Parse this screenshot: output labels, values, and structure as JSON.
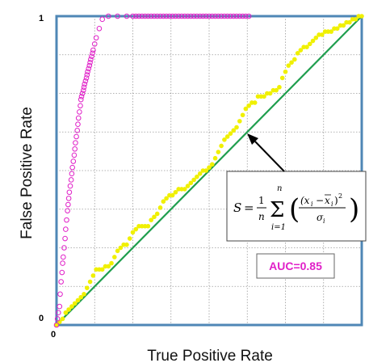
{
  "chart_data": {
    "type": "scatter",
    "xlabel": "True Positive Rate",
    "ylabel": "False Positive Rate",
    "xlim": [
      0,
      1
    ],
    "ylim": [
      0,
      1
    ],
    "grid": true,
    "ticks": {
      "x_origin": "0",
      "y_origin": "0",
      "y_top": "1"
    },
    "colors": {
      "frame": "#4f87b6",
      "grid": "#9a9a9a",
      "diagonal": "#1f9e4e",
      "yellow": "#f0f000",
      "magenta": "#e020c8"
    },
    "annotations": {
      "auc": "AUC=0.85",
      "formula": "S = 1/n Σ_{i=1}^{n} ((x_i − x̄_i)^2 / σ_i)",
      "arrow_target": [
        0.515,
        0.515
      ]
    },
    "series": [
      {
        "marker": "filled-circle",
        "color": "#f0f000",
        "x": [
          0.0,
          0.01,
          0.02,
          0.03,
          0.04,
          0.05,
          0.06,
          0.07,
          0.08,
          0.09,
          0.1,
          0.11,
          0.12,
          0.13,
          0.14,
          0.15,
          0.16,
          0.17,
          0.18,
          0.19,
          0.2,
          0.21,
          0.22,
          0.23,
          0.24,
          0.25,
          0.26,
          0.27,
          0.28,
          0.29,
          0.3,
          0.31,
          0.32,
          0.33,
          0.34,
          0.35,
          0.36,
          0.37,
          0.38,
          0.39,
          0.4,
          0.41,
          0.42,
          0.43,
          0.44,
          0.45,
          0.46,
          0.47,
          0.48,
          0.49,
          0.5,
          0.51,
          0.52,
          0.53,
          0.54,
          0.55,
          0.56,
          0.57,
          0.58,
          0.59,
          0.6,
          0.61,
          0.62,
          0.63,
          0.64,
          0.65,
          0.66,
          0.67,
          0.68,
          0.69,
          0.7,
          0.71,
          0.72,
          0.73,
          0.74,
          0.75,
          0.76,
          0.77,
          0.78,
          0.79,
          0.8,
          0.81,
          0.82,
          0.83,
          0.84,
          0.85,
          0.86,
          0.87,
          0.88,
          0.89,
          0.9,
          0.91,
          0.92,
          0.93,
          0.94,
          0.95,
          0.96,
          0.97,
          0.98,
          0.99,
          1.0
        ],
        "y": [
          0.0,
          0.01,
          0.02,
          0.04,
          0.05,
          0.06,
          0.07,
          0.08,
          0.09,
          0.1,
          0.12,
          0.14,
          0.16,
          0.18,
          0.18,
          0.18,
          0.19,
          0.19,
          0.2,
          0.22,
          0.24,
          0.25,
          0.26,
          0.26,
          0.28,
          0.3,
          0.31,
          0.32,
          0.32,
          0.32,
          0.32,
          0.34,
          0.35,
          0.36,
          0.38,
          0.4,
          0.41,
          0.42,
          0.42,
          0.43,
          0.44,
          0.44,
          0.44,
          0.45,
          0.46,
          0.47,
          0.48,
          0.49,
          0.5,
          0.5,
          0.51,
          0.52,
          0.54,
          0.56,
          0.58,
          0.6,
          0.61,
          0.62,
          0.63,
          0.64,
          0.66,
          0.68,
          0.7,
          0.71,
          0.72,
          0.72,
          0.74,
          0.74,
          0.74,
          0.75,
          0.75,
          0.76,
          0.76,
          0.77,
          0.8,
          0.82,
          0.84,
          0.85,
          0.86,
          0.88,
          0.89,
          0.9,
          0.9,
          0.91,
          0.92,
          0.93,
          0.94,
          0.94,
          0.95,
          0.95,
          0.95,
          0.96,
          0.96,
          0.97,
          0.97,
          0.98,
          0.98,
          0.99,
          0.99,
          1.0,
          1.0
        ]
      },
      {
        "marker": "open-circle",
        "color": "#e020c8",
        "x": [
          0.0,
          0.003,
          0.006,
          0.01,
          0.012,
          0.015,
          0.018,
          0.02,
          0.022,
          0.025,
          0.028,
          0.03,
          0.033,
          0.036,
          0.038,
          0.04,
          0.042,
          0.045,
          0.048,
          0.05,
          0.052,
          0.055,
          0.058,
          0.06,
          0.062,
          0.065,
          0.068,
          0.07,
          0.072,
          0.075,
          0.078,
          0.08,
          0.082,
          0.085,
          0.088,
          0.09,
          0.092,
          0.095,
          0.098,
          0.1,
          0.102,
          0.105,
          0.108,
          0.11,
          0.112,
          0.115,
          0.118,
          0.12,
          0.125,
          0.13,
          0.14,
          0.15,
          0.17,
          0.2,
          0.23,
          0.25,
          0.26,
          0.27,
          0.28,
          0.29,
          0.3,
          0.31,
          0.32,
          0.33,
          0.34,
          0.35,
          0.36,
          0.37,
          0.38,
          0.39,
          0.4,
          0.41,
          0.42,
          0.43,
          0.44,
          0.45,
          0.46,
          0.47,
          0.48,
          0.49,
          0.5,
          0.51,
          0.52,
          0.53,
          0.54,
          0.55,
          0.56,
          0.57,
          0.58,
          0.59,
          0.6,
          0.61,
          0.62,
          0.63
        ],
        "y": [
          0.0,
          0.02,
          0.04,
          0.06,
          0.1,
          0.14,
          0.17,
          0.2,
          0.22,
          0.25,
          0.28,
          0.31,
          0.34,
          0.37,
          0.39,
          0.41,
          0.43,
          0.45,
          0.47,
          0.49,
          0.51,
          0.53,
          0.55,
          0.57,
          0.59,
          0.61,
          0.63,
          0.65,
          0.67,
          0.69,
          0.71,
          0.73,
          0.74,
          0.75,
          0.76,
          0.77,
          0.78,
          0.79,
          0.8,
          0.81,
          0.82,
          0.83,
          0.84,
          0.85,
          0.86,
          0.87,
          0.88,
          0.89,
          0.91,
          0.93,
          0.96,
          0.99,
          1.0,
          1.0,
          1.0,
          1.0,
          1.0,
          1.0,
          1.0,
          1.0,
          1.0,
          1.0,
          1.0,
          1.0,
          1.0,
          1.0,
          1.0,
          1.0,
          1.0,
          1.0,
          1.0,
          1.0,
          1.0,
          1.0,
          1.0,
          1.0,
          1.0,
          1.0,
          1.0,
          1.0,
          1.0,
          1.0,
          1.0,
          1.0,
          1.0,
          1.0,
          1.0,
          1.0,
          1.0,
          1.0,
          1.0,
          1.0,
          1.0,
          1.0
        ]
      }
    ]
  }
}
